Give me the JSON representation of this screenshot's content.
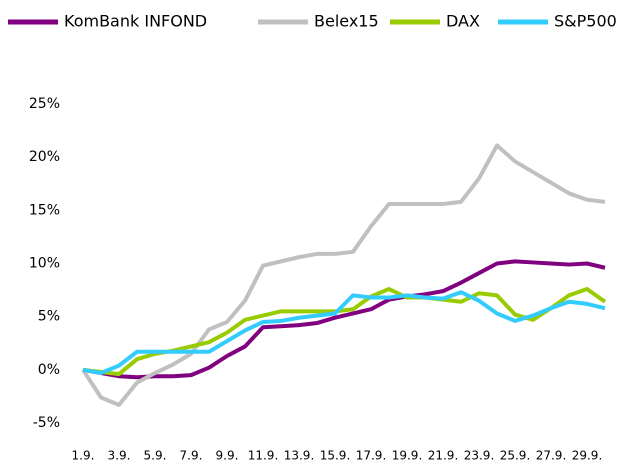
{
  "chart_data": {
    "type": "line",
    "categories": [
      "1.9.",
      null,
      "3.9.",
      null,
      "5.9.",
      null,
      "7.9.",
      null,
      "9.9.",
      null,
      "11.9.",
      null,
      "13.9.",
      null,
      "15.9.",
      null,
      "17.9.",
      null,
      "19.9.",
      null,
      "21.9.",
      null,
      "23.9.",
      null,
      "25.9.",
      null,
      "27.9.",
      null,
      "29.9.",
      null
    ],
    "series": [
      {
        "name": "KomBank INFOND",
        "color": "#800080",
        "values": [
          0,
          -0.3,
          -0.6,
          -0.7,
          -0.6,
          -0.6,
          -0.5,
          0.2,
          1.3,
          2.2,
          4.0,
          4.1,
          4.2,
          4.4,
          4.9,
          5.3,
          5.7,
          6.6,
          6.9,
          7.1,
          7.4,
          8.2,
          9.1,
          10.0,
          10.2,
          10.1,
          10.0,
          9.9,
          10.0,
          9.6
        ]
      },
      {
        "name": "Belex15",
        "color": "#c0c0c0",
        "values": [
          0,
          -2.6,
          -3.3,
          -1.2,
          -0.3,
          0.5,
          1.5,
          3.8,
          4.5,
          6.5,
          9.8,
          10.2,
          10.6,
          10.9,
          10.9,
          11.1,
          13.5,
          15.6,
          15.6,
          15.6,
          15.6,
          15.8,
          18.0,
          21.1,
          19.6,
          18.6,
          17.6,
          16.6,
          16.0,
          15.8
        ]
      },
      {
        "name": "DAX",
        "color": "#99cc00",
        "values": [
          0,
          -0.2,
          -0.4,
          1.0,
          1.5,
          1.8,
          2.2,
          2.6,
          3.5,
          4.7,
          5.1,
          5.5,
          5.5,
          5.5,
          5.5,
          5.7,
          6.9,
          7.6,
          6.8,
          6.8,
          6.6,
          6.4,
          7.2,
          7.0,
          5.2,
          4.7,
          5.8,
          7.0,
          7.6,
          6.4
        ]
      },
      {
        "name": "S&P500",
        "color": "#33ccff",
        "values": [
          0,
          -0.3,
          0.4,
          1.7,
          1.7,
          1.7,
          1.7,
          1.7,
          2.7,
          3.7,
          4.5,
          4.6,
          4.9,
          5.1,
          5.3,
          7.0,
          6.8,
          6.8,
          7.0,
          6.8,
          6.7,
          7.3,
          6.5,
          5.3,
          4.6,
          5.1,
          5.8,
          6.4,
          6.2,
          5.8
        ]
      }
    ],
    "ylim": [
      -5,
      25
    ],
    "yticks": [
      {
        "value": -5,
        "label": "-5%"
      },
      {
        "value": 0,
        "label": "0%"
      },
      {
        "value": 5,
        "label": "5%"
      },
      {
        "value": 10,
        "label": "10%"
      },
      {
        "value": 15,
        "label": "15%"
      },
      {
        "value": 20,
        "label": "20%"
      },
      {
        "value": 25,
        "label": "25%"
      }
    ],
    "legend": "top"
  }
}
